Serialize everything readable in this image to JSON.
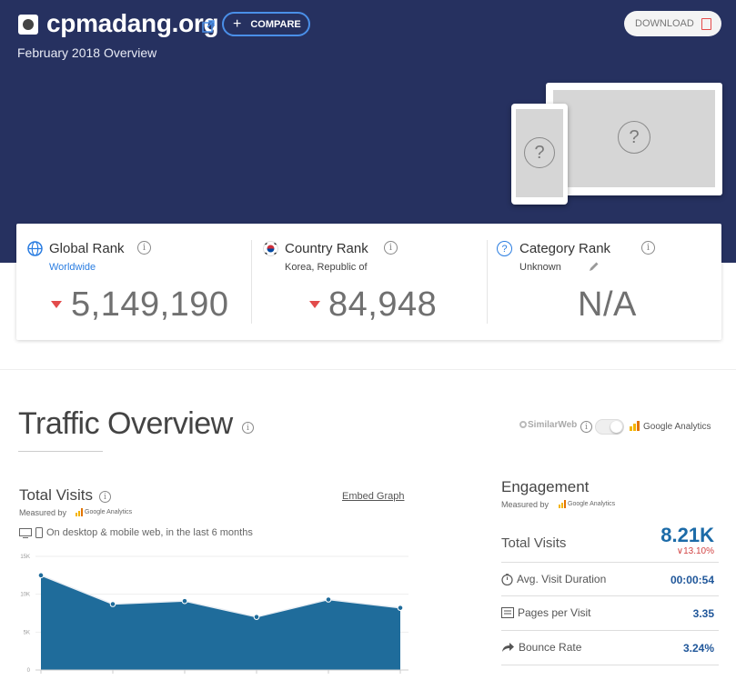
{
  "header": {
    "site": "cpmadang.org",
    "compare_label": "COMPARE",
    "subtitle": "February 2018 Overview",
    "download_label": "DOWNLOAD"
  },
  "ranks": {
    "global": {
      "title": "Global Rank",
      "sub": "Worldwide",
      "value": "5,149,190",
      "trend": "down"
    },
    "country": {
      "title": "Country Rank",
      "sub": "Korea, Republic of",
      "value": "84,948",
      "trend": "down"
    },
    "category": {
      "title": "Category Rank",
      "sub": "Unknown",
      "value": "N/A"
    }
  },
  "traffic": {
    "title": "Traffic Overview",
    "source_similarweb": "SimilarWeb",
    "source_ga": "Google Analytics",
    "total_visits_title": "Total Visits",
    "measured_by": "Measured by",
    "ga_small": "Google Analytics",
    "embed_label": "Embed Graph",
    "devices_text": "On desktop & mobile web, in the last 6 months"
  },
  "chart_data": {
    "type": "area",
    "y_ticks": [
      "15K",
      "10K",
      "5K",
      "0"
    ],
    "ylim": [
      0,
      15000
    ],
    "values": [
      12500,
      8700,
      9100,
      7000,
      9300,
      8200
    ],
    "color": "#1f6c9b",
    "grid": true
  },
  "engagement": {
    "title": "Engagement",
    "measured_by": "Measured by",
    "ga_small": "Google Analytics",
    "total_visits_label": "Total Visits",
    "total_visits_value": "8.21K",
    "total_visits_change": "13.10%",
    "avg_duration_label": "Avg. Visit Duration",
    "avg_duration_value": "00:00:54",
    "pages_label": "Pages per Visit",
    "pages_value": "3.35",
    "bounce_label": "Bounce Rate",
    "bounce_value": "3.24%"
  },
  "colors": {
    "hero": "#263160",
    "accent": "#4a8fe8",
    "down": "#e24b4b",
    "link": "#20579a"
  }
}
